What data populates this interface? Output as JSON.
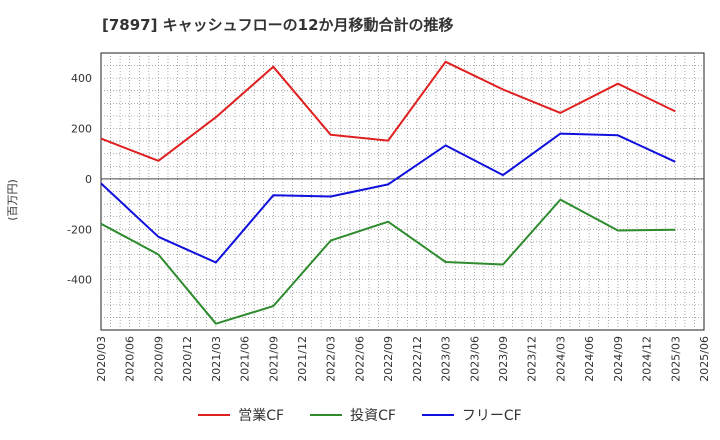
{
  "chart_data": {
    "type": "line",
    "title": "[7897]  キャッシュフローの12か月移動合計の推移",
    "ylabel": "(百万円)",
    "xlabel": "",
    "ylim": [
      -600,
      500
    ],
    "yticks": [
      400,
      200,
      0,
      -200,
      -400
    ],
    "x_ticks": [
      "2020/03",
      "2020/06",
      "2020/09",
      "2020/12",
      "2021/03",
      "2021/06",
      "2021/09",
      "2021/12",
      "2022/03",
      "2022/06",
      "2022/09",
      "2022/12",
      "2023/03",
      "2023/06",
      "2023/09",
      "2023/12",
      "2024/03",
      "2024/06",
      "2024/09",
      "2024/12",
      "2025/03",
      "2025/06"
    ],
    "series": [
      {
        "name": "営業CF",
        "color": "#e02020",
        "x": [
          "2020/03",
          "2020/09",
          "2021/03",
          "2021/09",
          "2022/03",
          "2022/09",
          "2023/03",
          "2023/09",
          "2024/03",
          "2024/09",
          "2025/03"
        ],
        "values": [
          160,
          72,
          245,
          445,
          175,
          152,
          465,
          355,
          262,
          378,
          268
        ]
      },
      {
        "name": "投資CF",
        "color": "#2e8b2e",
        "x": [
          "2020/03",
          "2020/09",
          "2021/03",
          "2021/09",
          "2022/03",
          "2022/09",
          "2023/03",
          "2023/09",
          "2024/03",
          "2024/09",
          "2025/03"
        ],
        "values": [
          -178,
          -300,
          -575,
          -505,
          -245,
          -170,
          -330,
          -340,
          -82,
          -205,
          -202
        ]
      },
      {
        "name": "フリーCF",
        "color": "#1010dd",
        "x": [
          "2020/03",
          "2020/09",
          "2021/03",
          "2021/09",
          "2022/03",
          "2022/09",
          "2023/03",
          "2023/09",
          "2024/03",
          "2024/09",
          "2025/03"
        ],
        "values": [
          -18,
          -230,
          -332,
          -65,
          -70,
          -22,
          133,
          15,
          180,
          173,
          68
        ]
      }
    ],
    "legend_position": "bottom",
    "grid": true
  }
}
